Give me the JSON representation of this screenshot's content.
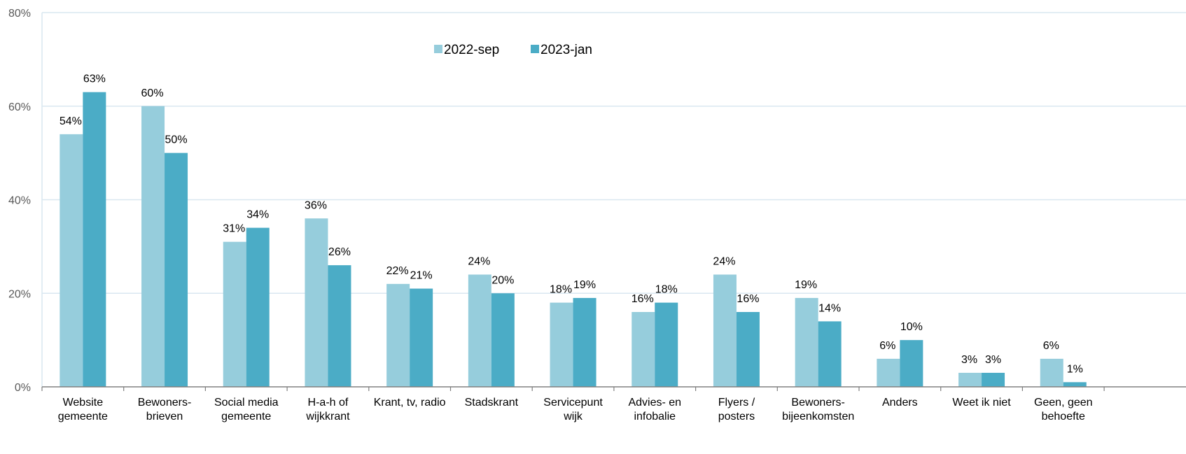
{
  "chart_data": {
    "type": "bar",
    "title": "",
    "xlabel": "",
    "ylabel": "",
    "ylim": [
      0,
      80
    ],
    "yticks": [
      "0%",
      "20%",
      "40%",
      "60%",
      "80%"
    ],
    "grid": true,
    "legend_position": "top-center",
    "categories": [
      [
        "Website",
        "gemeente"
      ],
      [
        "Bewoners-",
        "brieven"
      ],
      [
        "Social media",
        "gemeente"
      ],
      [
        "H-a-h of",
        "wijkkrant"
      ],
      [
        "Krant, tv, radio"
      ],
      [
        "Stadskrant"
      ],
      [
        "Servicepunt",
        "wijk"
      ],
      [
        "Advies- en",
        "infobalie"
      ],
      [
        "Flyers /",
        "posters"
      ],
      [
        "Bewoners-",
        "bijeenkomsten"
      ],
      [
        "Anders"
      ],
      [
        "Weet ik niet"
      ],
      [
        "Geen, geen",
        "behoefte"
      ]
    ],
    "series": [
      {
        "name": "2022-sep",
        "color": "#96CDDC",
        "values": [
          54,
          60,
          31,
          36,
          22,
          24,
          18,
          16,
          24,
          19,
          6,
          3,
          6
        ],
        "labels": [
          "54%",
          "60%",
          "31%",
          "36%",
          "22%",
          "24%",
          "18%",
          "16%",
          "24%",
          "19%",
          "6%",
          "3%",
          "6%"
        ]
      },
      {
        "name": "2023-jan",
        "color": "#4BACC6",
        "values": [
          63,
          50,
          34,
          26,
          21,
          20,
          19,
          18,
          16,
          14,
          10,
          3,
          1
        ],
        "labels": [
          "63%",
          "50%",
          "34%",
          "26%",
          "21%",
          "20%",
          "19%",
          "18%",
          "16%",
          "14%",
          "10%",
          "3%",
          "1%"
        ]
      }
    ]
  }
}
